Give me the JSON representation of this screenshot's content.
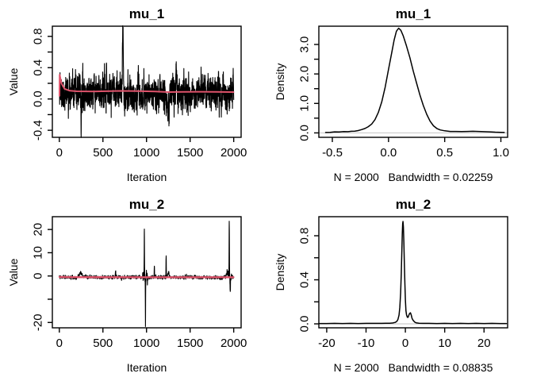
{
  "figure": {
    "background": "#ffffff",
    "curve_color": "#000000",
    "smooth_color": "#DF536B",
    "zero_line_color": "#cccccc",
    "layout": "2x2 R graphics device: MCMC trace plots (left) and kernel density plots (right)"
  },
  "chart_data": [
    {
      "id": "trace-mu1",
      "type": "line",
      "title": "mu_1",
      "xlabel": "Iteration",
      "ylabel": "Value",
      "xlim": [
        -80,
        2085
      ],
      "ylim": [
        -0.49,
        0.93
      ],
      "x_ticks": [
        {
          "v": 0,
          "label": "0"
        },
        {
          "v": 500,
          "label": "500"
        },
        {
          "v": 1000,
          "label": "1000"
        },
        {
          "v": 1500,
          "label": "1500"
        },
        {
          "v": 2000,
          "label": "2000"
        }
      ],
      "y_ticks": [
        {
          "v": -0.4,
          "label": "-0.4"
        },
        {
          "v": -0.2,
          "label": ""
        },
        {
          "v": 0.0,
          "label": "0.0"
        },
        {
          "v": 0.2,
          "label": ""
        },
        {
          "v": 0.4,
          "label": "0.4"
        },
        {
          "v": 0.6,
          "label": ""
        },
        {
          "v": 0.8,
          "label": "0.8"
        }
      ],
      "trace": {
        "n": 2000,
        "seed": 11,
        "baseline": 0.07,
        "phi": 0.42,
        "sd": 0.095,
        "start": 0.45,
        "bumps": [
          [
            8,
            0.25,
            3
          ],
          [
            250,
            -0.42,
            2
          ],
          [
            497,
            0.27,
            3
          ],
          [
            610,
            0.18,
            4
          ],
          [
            728,
            0.74,
            6
          ],
          [
            905,
            0.2,
            4
          ],
          [
            1240,
            -0.2,
            8
          ],
          [
            1258,
            -0.38,
            3
          ],
          [
            1340,
            0.22,
            6
          ],
          [
            1430,
            0.2,
            4
          ],
          [
            1660,
            0.22,
            5
          ],
          [
            1995,
            0.18,
            3
          ]
        ],
        "noise_regions": []
      },
      "smooth_line": {
        "width": 2,
        "points": [
          [
            2,
            0.04
          ],
          [
            4,
            0.31
          ],
          [
            25,
            0.2
          ],
          [
            60,
            0.13
          ],
          [
            120,
            0.105
          ],
          [
            200,
            0.098
          ],
          [
            400,
            0.096
          ],
          [
            600,
            0.1
          ],
          [
            700,
            0.103
          ],
          [
            900,
            0.1
          ],
          [
            1100,
            0.096
          ],
          [
            1250,
            0.088
          ],
          [
            1400,
            0.09
          ],
          [
            1600,
            0.092
          ],
          [
            1800,
            0.09
          ],
          [
            1998,
            0.088
          ]
        ]
      }
    },
    {
      "id": "density-mu1",
      "type": "density",
      "title": "mu_1",
      "xlabel": "N = 2000   Bandwidth = 0.02259",
      "ylabel": "Density",
      "n": 2000,
      "bandwidth": 0.02259,
      "xlim": [
        -0.62,
        1.06
      ],
      "ylim": [
        -0.15,
        3.62
      ],
      "x_ticks": [
        {
          "v": -0.5,
          "label": "-0.5"
        },
        {
          "v": 0.0,
          "label": "0.0"
        },
        {
          "v": 0.5,
          "label": "0.5"
        },
        {
          "v": 1.0,
          "label": "1.0"
        }
      ],
      "y_ticks": [
        {
          "v": 0.0,
          "label": "0.0"
        },
        {
          "v": 0.5,
          "label": ""
        },
        {
          "v": 1.0,
          "label": "1.0"
        },
        {
          "v": 1.5,
          "label": ""
        },
        {
          "v": 2.0,
          "label": "2.0"
        },
        {
          "v": 2.5,
          "label": ""
        },
        {
          "v": 3.0,
          "label": "3.0"
        }
      ],
      "points": [
        [
          -0.56,
          0.015
        ],
        [
          -0.52,
          0.02
        ],
        [
          -0.48,
          0.035
        ],
        [
          -0.44,
          0.03
        ],
        [
          -0.4,
          0.045
        ],
        [
          -0.36,
          0.04
        ],
        [
          -0.33,
          0.055
        ],
        [
          -0.3,
          0.06
        ],
        [
          -0.27,
          0.08
        ],
        [
          -0.24,
          0.11
        ],
        [
          -0.21,
          0.15
        ],
        [
          -0.18,
          0.21
        ],
        [
          -0.15,
          0.3
        ],
        [
          -0.12,
          0.45
        ],
        [
          -0.09,
          0.7
        ],
        [
          -0.06,
          1.05
        ],
        [
          -0.03,
          1.55
        ],
        [
          0.0,
          2.15
        ],
        [
          0.03,
          2.75
        ],
        [
          0.05,
          3.15
        ],
        [
          0.07,
          3.45
        ],
        [
          0.09,
          3.55
        ],
        [
          0.11,
          3.48
        ],
        [
          0.13,
          3.3
        ],
        [
          0.16,
          2.95
        ],
        [
          0.19,
          2.55
        ],
        [
          0.22,
          2.1
        ],
        [
          0.25,
          1.68
        ],
        [
          0.28,
          1.28
        ],
        [
          0.31,
          0.93
        ],
        [
          0.34,
          0.63
        ],
        [
          0.37,
          0.4
        ],
        [
          0.4,
          0.24
        ],
        [
          0.43,
          0.15
        ],
        [
          0.46,
          0.1
        ],
        [
          0.5,
          0.07
        ],
        [
          0.55,
          0.05
        ],
        [
          0.6,
          0.05
        ],
        [
          0.65,
          0.045
        ],
        [
          0.7,
          0.05
        ],
        [
          0.75,
          0.055
        ],
        [
          0.8,
          0.05
        ],
        [
          0.85,
          0.04
        ],
        [
          0.9,
          0.035
        ],
        [
          0.95,
          0.025
        ],
        [
          1.0,
          0.02
        ],
        [
          1.03,
          0.015
        ]
      ]
    },
    {
      "id": "trace-mu2",
      "type": "line",
      "title": "mu_2",
      "xlabel": "Iteration",
      "ylabel": "Value",
      "xlim": [
        -80,
        2085
      ],
      "ylim": [
        -22.3,
        25.5
      ],
      "x_ticks": [
        {
          "v": 0,
          "label": "0"
        },
        {
          "v": 500,
          "label": "500"
        },
        {
          "v": 1000,
          "label": "1000"
        },
        {
          "v": 1500,
          "label": "1500"
        },
        {
          "v": 2000,
          "label": "2000"
        }
      ],
      "y_ticks": [
        {
          "v": -20,
          "label": "-20"
        },
        {
          "v": -10,
          "label": ""
        },
        {
          "v": 0,
          "label": "0"
        },
        {
          "v": 10,
          "label": "10"
        },
        {
          "v": 20,
          "label": "20"
        }
      ],
      "trace": {
        "n": 2000,
        "seed": 7,
        "baseline": -0.55,
        "phi": 0.5,
        "sd": 0.3,
        "start": -0.5,
        "bumps": [
          [
            245,
            2.3,
            14
          ],
          [
            300,
            0.8,
            6
          ],
          [
            645,
            2.9,
            2.5
          ],
          [
            975,
            21.6,
            1.6
          ],
          [
            988,
            -20.0,
            1.6
          ],
          [
            1000,
            2.5,
            3
          ],
          [
            1090,
            4.5,
            2
          ],
          [
            1225,
            9.4,
            1.6
          ],
          [
            1252,
            2.4,
            7
          ],
          [
            1928,
            2.6,
            9
          ],
          [
            1949,
            24.2,
            1.8
          ],
          [
            1961,
            -7.2,
            2
          ]
        ],
        "noise_regions": [
          [
            955,
            1015,
            4
          ],
          [
            1920,
            1975,
            3
          ]
        ]
      },
      "smooth_line": {
        "width": 2.4,
        "points": [
          [
            2,
            -0.4
          ],
          [
            150,
            -0.5
          ],
          [
            1000,
            -0.55
          ],
          [
            1998,
            -0.55
          ]
        ]
      }
    },
    {
      "id": "density-mu2",
      "type": "density",
      "title": "mu_2",
      "xlabel": "N = 2000   Bandwidth = 0.08835",
      "ylabel": "Density",
      "n": 2000,
      "bandwidth": 0.08835,
      "xlim": [
        -22,
        26
      ],
      "ylim": [
        -0.036,
        0.973
      ],
      "x_ticks": [
        {
          "v": -20,
          "label": "-20"
        },
        {
          "v": -10,
          "label": "-10"
        },
        {
          "v": 0,
          "label": "0"
        },
        {
          "v": 10,
          "label": "10"
        },
        {
          "v": 20,
          "label": "20"
        }
      ],
      "y_ticks": [
        {
          "v": 0.0,
          "label": "0.0"
        },
        {
          "v": 0.2,
          "label": ""
        },
        {
          "v": 0.4,
          "label": "0.4"
        },
        {
          "v": 0.6,
          "label": ""
        },
        {
          "v": 0.8,
          "label": "0.8"
        }
      ],
      "points": [
        [
          -21.9,
          0.003
        ],
        [
          -20,
          0.003
        ],
        [
          -18,
          0.004
        ],
        [
          -16,
          0.003
        ],
        [
          -14,
          0.004
        ],
        [
          -12,
          0.003
        ],
        [
          -10,
          0.004
        ],
        [
          -8,
          0.004
        ],
        [
          -6,
          0.004
        ],
        [
          -5,
          0.005
        ],
        [
          -4,
          0.006
        ],
        [
          -3.2,
          0.008
        ],
        [
          -2.6,
          0.013
        ],
        [
          -2.2,
          0.022
        ],
        [
          -1.9,
          0.04
        ],
        [
          -1.6,
          0.08
        ],
        [
          -1.4,
          0.15
        ],
        [
          -1.2,
          0.28
        ],
        [
          -1.05,
          0.45
        ],
        [
          -0.9,
          0.65
        ],
        [
          -0.78,
          0.82
        ],
        [
          -0.68,
          0.91
        ],
        [
          -0.6,
          0.93
        ],
        [
          -0.5,
          0.88
        ],
        [
          -0.38,
          0.74
        ],
        [
          -0.25,
          0.55
        ],
        [
          -0.12,
          0.36
        ],
        [
          0.0,
          0.22
        ],
        [
          0.15,
          0.12
        ],
        [
          0.3,
          0.08
        ],
        [
          0.5,
          0.06
        ],
        [
          0.7,
          0.06
        ],
        [
          0.9,
          0.08
        ],
        [
          1.1,
          0.095
        ],
        [
          1.3,
          0.1
        ],
        [
          1.5,
          0.08
        ],
        [
          1.7,
          0.05
        ],
        [
          2.0,
          0.03
        ],
        [
          2.4,
          0.015
        ],
        [
          2.8,
          0.009
        ],
        [
          3.5,
          0.006
        ],
        [
          4.5,
          0.004
        ],
        [
          6,
          0.004
        ],
        [
          8,
          0.003
        ],
        [
          10,
          0.004
        ],
        [
          12,
          0.003
        ],
        [
          14,
          0.004
        ],
        [
          16,
          0.003
        ],
        [
          18,
          0.004
        ],
        [
          20,
          0.003
        ],
        [
          22,
          0.004
        ],
        [
          24,
          0.003
        ],
        [
          25.7,
          0.003
        ]
      ]
    }
  ]
}
